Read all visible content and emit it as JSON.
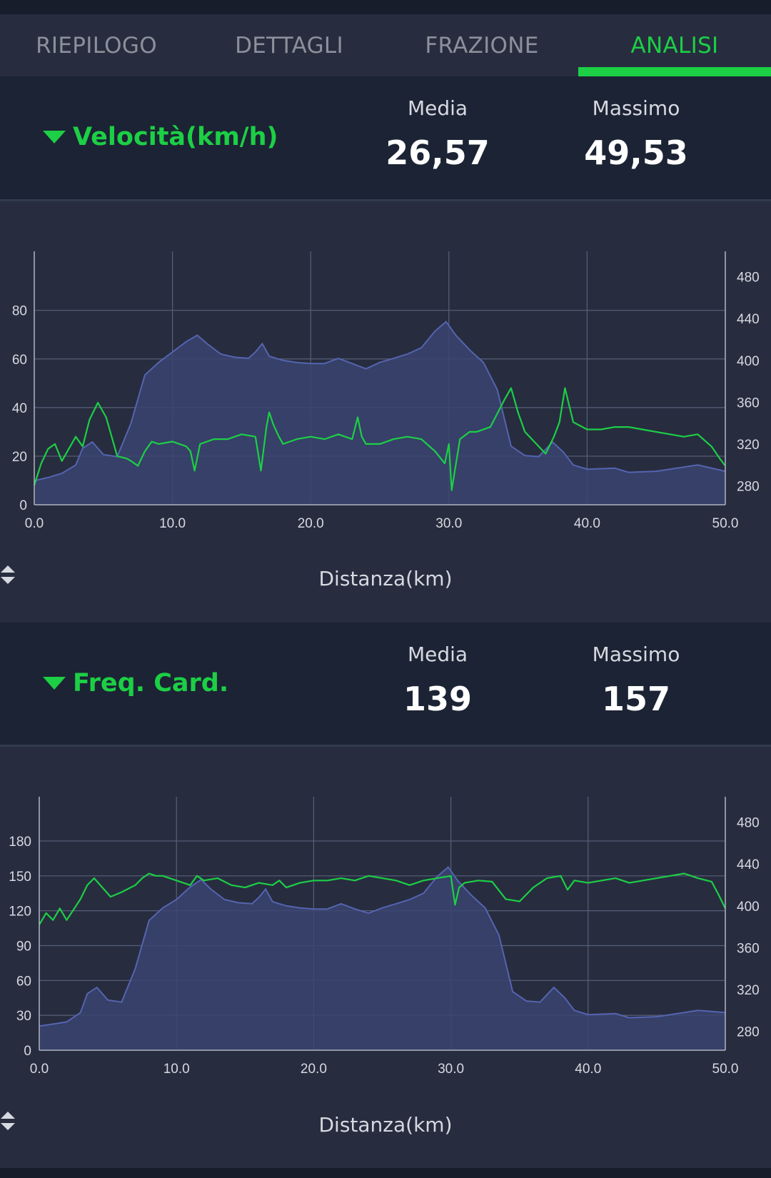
{
  "tabs": [
    {
      "label": "RIEPILOGO",
      "active": false
    },
    {
      "label": "DETTAGLI",
      "active": false
    },
    {
      "label": "FRAZIONE",
      "active": false
    },
    {
      "label": "ANALISI",
      "active": true
    }
  ],
  "colors": {
    "accent": "#1ccf45",
    "area": "#3a4470",
    "area_line": "#5564b0",
    "background": "#1c2334",
    "panel": "#272d3f"
  },
  "speed_section": {
    "title": "Velocità(km/h)",
    "avg_label": "Media",
    "avg_value": "26,57",
    "max_label": "Massimo",
    "max_value": "49,53",
    "x_axis_label": "Distanza(km)"
  },
  "hr_section": {
    "title": "Freq. Card.",
    "avg_label": "Media",
    "avg_value": "139",
    "max_label": "Massimo",
    "max_value": "157",
    "x_axis_label": "Distanza(km)"
  },
  "chart_data": [
    {
      "type": "line",
      "xlabel": "Distanza(km)",
      "x_ticks": [
        "0.0",
        "10.0",
        "20.0",
        "30.0",
        "40.0",
        "50.0"
      ],
      "x_range": [
        0,
        50
      ],
      "y_left_ticks": [
        "0",
        "20",
        "40",
        "60",
        "80"
      ],
      "y_left_range": [
        0,
        99
      ],
      "y_right_ticks": [
        "280",
        "320",
        "360",
        "400",
        "440",
        "480"
      ],
      "y_right_range": [
        262,
        492
      ],
      "grid": true,
      "series": [
        {
          "axis": "right",
          "style": "area",
          "color": "#5564b0",
          "x": [
            0,
            1,
            2,
            3,
            3.5,
            4.2,
            5,
            6,
            7,
            8,
            9,
            10,
            11,
            11.8,
            12.5,
            13.5,
            14.5,
            15.5,
            16,
            16.5,
            17,
            17.5,
            18,
            19,
            20,
            21,
            22,
            23,
            24,
            25,
            26,
            27,
            28,
            29,
            29.8,
            30.5,
            31.5,
            32.5,
            33.5,
            34.5,
            35.5,
            36.5,
            37.5,
            38.3,
            39,
            40,
            42,
            43,
            45,
            47,
            48,
            50
          ],
          "y": [
            285,
            288,
            292,
            300,
            316,
            322,
            310,
            308,
            340,
            386,
            398,
            408,
            418,
            424,
            416,
            406,
            403,
            402,
            408,
            416,
            404,
            402,
            400,
            398,
            397,
            397,
            402,
            397,
            392,
            398,
            402,
            406,
            412,
            428,
            437,
            424,
            410,
            398,
            372,
            318,
            309,
            308,
            322,
            312,
            300,
            296,
            297,
            293,
            294,
            298,
            300,
            294
          ]
        },
        {
          "axis": "left",
          "style": "line",
          "color": "#1ccf45",
          "x": [
            0,
            0.5,
            1,
            1.5,
            2,
            3,
            3.5,
            4,
            4.6,
            5.2,
            6,
            6.7,
            7,
            7.5,
            8,
            8.5,
            9,
            10,
            11,
            11.3,
            11.6,
            12,
            12.5,
            13,
            14,
            15,
            16,
            16.4,
            16.8,
            17,
            17.3,
            17.7,
            18,
            19,
            20,
            21,
            22,
            23,
            23.4,
            23.7,
            24,
            25,
            26,
            27,
            28,
            29,
            29.7,
            30,
            30.2,
            30.8,
            31.5,
            32,
            33,
            34,
            34.5,
            35,
            35.5,
            36,
            37,
            37.6,
            38,
            38.4,
            39,
            40,
            41,
            42,
            43,
            44,
            45,
            46,
            47,
            48,
            49,
            49.6,
            50
          ],
          "y": [
            8,
            17,
            23,
            25,
            18,
            28,
            24,
            35,
            42,
            36,
            20,
            19,
            18,
            16,
            22,
            26,
            25,
            26,
            24,
            22,
            14,
            25,
            26,
            27,
            27,
            29,
            28,
            14,
            32,
            38,
            33,
            28,
            25,
            27,
            28,
            27,
            29,
            27,
            36,
            28,
            25,
            25,
            27,
            28,
            27,
            22,
            17,
            25,
            6,
            27,
            30,
            30,
            32,
            43,
            48,
            38,
            30,
            27,
            21,
            28,
            34,
            48,
            34,
            31,
            31,
            32,
            32,
            31,
            30,
            29,
            28,
            29,
            24,
            19,
            16
          ]
        }
      ]
    },
    {
      "type": "line",
      "xlabel": "Distanza(km)",
      "x_ticks": [
        "0.0",
        "10.0",
        "20.0",
        "30.0",
        "40.0",
        "50.0"
      ],
      "x_range": [
        0,
        50
      ],
      "y_left_ticks": [
        "0",
        "30",
        "60",
        "90",
        "120",
        "150",
        "180"
      ],
      "y_left_range": [
        0,
        207
      ],
      "y_right_ticks": [
        "280",
        "320",
        "360",
        "400",
        "440",
        "480"
      ],
      "y_right_range": [
        262,
        492
      ],
      "grid": true,
      "series": [
        {
          "axis": "right",
          "style": "area",
          "color": "#5564b0",
          "x": [
            0,
            1,
            2,
            3,
            3.5,
            4.2,
            5,
            6,
            7,
            8,
            9,
            10,
            11,
            11.8,
            12.5,
            13.5,
            14.5,
            15.5,
            16,
            16.5,
            17,
            17.5,
            18,
            19,
            20,
            21,
            22,
            23,
            24,
            25,
            26,
            27,
            28,
            29,
            29.8,
            30.5,
            31.5,
            32.5,
            33.5,
            34.5,
            35.5,
            36.5,
            37.5,
            38.3,
            39,
            40,
            42,
            43,
            45,
            47,
            48,
            50
          ],
          "y": [
            285,
            287,
            289,
            298,
            316,
            322,
            310,
            308,
            340,
            386,
            398,
            406,
            418,
            425,
            416,
            406,
            403,
            402,
            408,
            416,
            404,
            402,
            400,
            398,
            397,
            397,
            402,
            397,
            393,
            398,
            402,
            406,
            412,
            428,
            437,
            424,
            410,
            398,
            372,
            318,
            309,
            308,
            322,
            312,
            300,
            296,
            297,
            293,
            294,
            298,
            300,
            298
          ]
        },
        {
          "axis": "left",
          "style": "line",
          "color": "#1ccf45",
          "x": [
            0,
            0.5,
            1,
            1.5,
            2,
            3,
            3.5,
            4,
            4.6,
            5.2,
            6,
            7,
            7.5,
            8,
            8.5,
            9,
            10,
            11,
            11.5,
            12,
            13,
            14,
            15,
            16,
            17,
            17.5,
            18,
            19,
            20,
            21,
            22,
            23,
            24,
            25,
            26,
            27,
            28,
            29,
            30,
            30.3,
            30.6,
            31,
            32,
            33,
            34,
            35,
            36,
            37,
            38,
            38.5,
            39,
            40,
            41,
            42,
            43,
            44,
            45,
            46,
            47,
            48,
            49,
            49.5,
            50
          ],
          "y": [
            108,
            118,
            112,
            122,
            112,
            130,
            142,
            148,
            140,
            132,
            136,
            142,
            148,
            152,
            150,
            150,
            146,
            142,
            150,
            146,
            148,
            142,
            140,
            144,
            142,
            146,
            140,
            144,
            146,
            146,
            148,
            146,
            150,
            148,
            146,
            142,
            146,
            148,
            150,
            125,
            140,
            144,
            146,
            145,
            130,
            128,
            140,
            148,
            150,
            138,
            146,
            144,
            146,
            148,
            144,
            146,
            148,
            150,
            152,
            148,
            145,
            134,
            122
          ]
        }
      ]
    }
  ]
}
